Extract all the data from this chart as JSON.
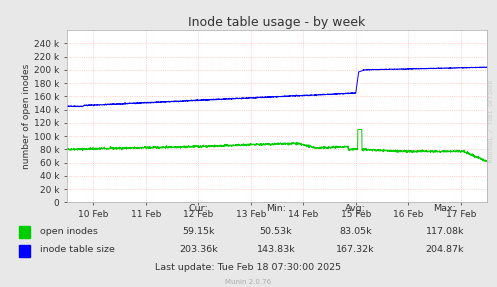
{
  "title": "Inode table usage - by week",
  "ylabel": "number of open inodes",
  "bg_color": "#e8e8e8",
  "plot_bg_color": "#ffffff",
  "grid_color": "#ffaaaa",
  "ylim": [
    0,
    260000
  ],
  "yticks": [
    0,
    20000,
    40000,
    60000,
    80000,
    100000,
    120000,
    140000,
    160000,
    180000,
    200000,
    220000,
    240000
  ],
  "xtick_labels": [
    "10 Feb",
    "11 Feb",
    "12 Feb",
    "13 Feb",
    "14 Feb",
    "15 Feb",
    "16 Feb",
    "17 Feb"
  ],
  "green_color": "#00cc00",
  "blue_color": "#0000ff",
  "legend_items": [
    "open inodes",
    "inode table size"
  ],
  "cur_label": "Cur:",
  "min_label": "Min:",
  "avg_label": "Avg:",
  "max_label": "Max:",
  "open_cur": "59.15k",
  "open_min": "50.53k",
  "open_avg": "83.05k",
  "open_max": "117.08k",
  "inode_cur": "203.36k",
  "inode_min": "143.83k",
  "inode_avg": "167.32k",
  "inode_max": "204.87k",
  "last_update": "Last update: Tue Feb 18 07:30:00 2025",
  "munin_label": "Munin 2.0.76",
  "watermark": "RRDTOOL / TOBI OETIKER"
}
